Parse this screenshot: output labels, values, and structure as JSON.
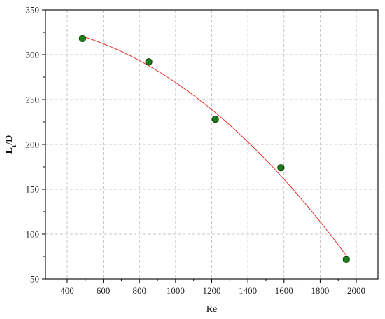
{
  "chart_data": {
    "type": "scatter",
    "xlabel": "Re",
    "ylabel_main": "L",
    "ylabel_sub": "t",
    "ylabel_tail": "/D",
    "xlim": [
      280,
      2120
    ],
    "ylim": [
      50,
      350
    ],
    "xticks": [
      400,
      600,
      800,
      1000,
      1200,
      1400,
      1600,
      1800,
      2000
    ],
    "yticks": [
      50,
      100,
      150,
      200,
      250,
      300,
      350
    ],
    "grid": true,
    "points": [
      {
        "x": 485,
        "y": 318
      },
      {
        "x": 852,
        "y": 292
      },
      {
        "x": 1220,
        "y": 228
      },
      {
        "x": 1583,
        "y": 174
      },
      {
        "x": 1945,
        "y": 72
      }
    ],
    "fit_curve": {
      "type": "quadratic",
      "x_range": [
        485,
        1945
      ],
      "coefficients": {
        "a": -7.15e-05,
        "b": 0.0063,
        "c": 334.2
      }
    },
    "colors": {
      "points": "#1f7a1a",
      "fit": "#e8302a"
    }
  }
}
